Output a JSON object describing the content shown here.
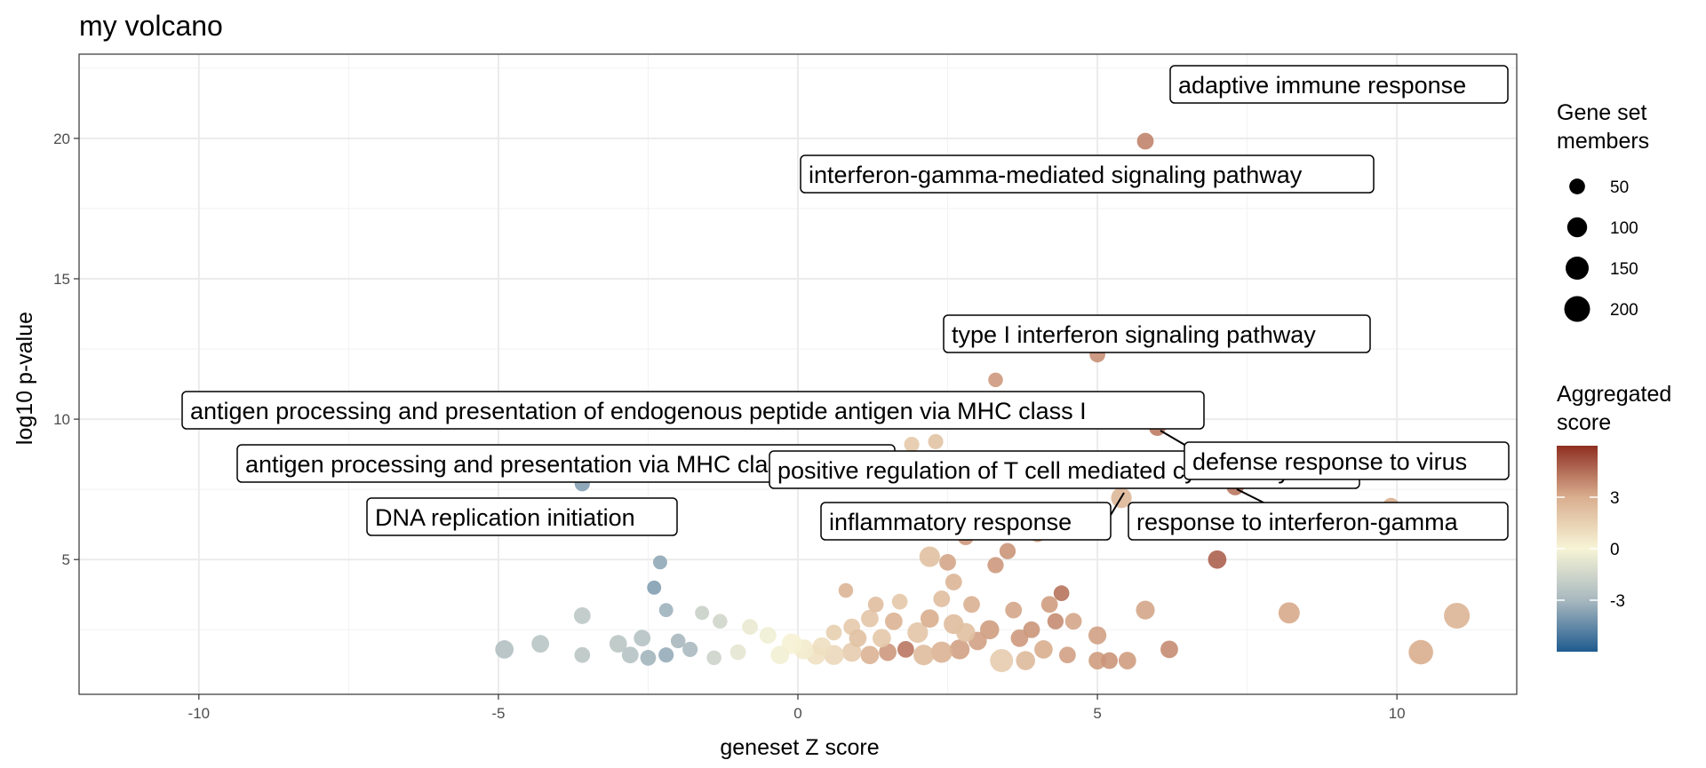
{
  "chart_data": {
    "type": "scatter",
    "title": "my volcano",
    "xlabel": "geneset Z score",
    "ylabel": "log10 p-value",
    "xlim": [
      -12,
      12
    ],
    "ylim": [
      0.2,
      23
    ],
    "xticks": [
      -10,
      -5,
      0,
      5,
      10
    ],
    "yticks": [
      5,
      10,
      15,
      20
    ],
    "grid": true,
    "legend_placement": "right",
    "size_legend": {
      "title_lines": [
        "Gene set",
        "members"
      ],
      "entries": [
        {
          "label": "50",
          "value": 50
        },
        {
          "label": "100",
          "value": 100
        },
        {
          "label": "150",
          "value": 150
        },
        {
          "label": "200",
          "value": 200
        }
      ]
    },
    "color_legend": {
      "title_lines": [
        "Aggregated",
        "score"
      ],
      "range": [
        -6,
        6
      ],
      "ticks": [
        3,
        0,
        -3
      ],
      "tick_labels": [
        "3",
        "0",
        "-3"
      ],
      "colors": [
        "#1f5b8f",
        "#a8b8bf",
        "#f7f4d6",
        "#d9ae8f",
        "#8f2f22"
      ]
    },
    "points": [
      {
        "x": 5.8,
        "y": 19.9,
        "score": 4.0,
        "size": 60
      },
      {
        "x": 5.0,
        "y": 12.3,
        "score": 3.7,
        "size": 50
      },
      {
        "x": 3.3,
        "y": 11.4,
        "score": 3.5,
        "size": 40
      },
      {
        "x": 6.0,
        "y": 9.7,
        "score": 4.2,
        "size": 60
      },
      {
        "x": 7.3,
        "y": 7.6,
        "score": 4.3,
        "size": 70
      },
      {
        "x": 5.4,
        "y": 7.2,
        "score": 2.6,
        "size": 110
      },
      {
        "x": 7.0,
        "y": 5.0,
        "score": 4.8,
        "size": 80
      },
      {
        "x": 9.9,
        "y": 6.9,
        "score": 3.0,
        "size": 60
      },
      {
        "x": 2.3,
        "y": 9.2,
        "score": 2.1,
        "size": 45
      },
      {
        "x": 1.9,
        "y": 9.1,
        "score": 1.8,
        "size": 45
      },
      {
        "x": 2.3,
        "y": 6.0,
        "score": 3.8,
        "size": 50
      },
      {
        "x": 2.8,
        "y": 5.8,
        "score": 3.5,
        "size": 55
      },
      {
        "x": 3.1,
        "y": 6.4,
        "score": 3.4,
        "size": 55
      },
      {
        "x": 3.6,
        "y": 6.6,
        "score": 3.0,
        "size": 55
      },
      {
        "x": 4.0,
        "y": 5.9,
        "score": 3.3,
        "size": 50
      },
      {
        "x": 3.5,
        "y": 5.3,
        "score": 3.6,
        "size": 55
      },
      {
        "x": 2.2,
        "y": 5.1,
        "score": 2.2,
        "size": 110
      },
      {
        "x": 2.5,
        "y": 4.9,
        "score": 3.2,
        "size": 60
      },
      {
        "x": 2.6,
        "y": 4.2,
        "score": 2.7,
        "size": 60
      },
      {
        "x": 3.3,
        "y": 4.8,
        "score": 3.5,
        "size": 55
      },
      {
        "x": 4.4,
        "y": 3.8,
        "score": 4.4,
        "size": 50
      },
      {
        "x": 4.2,
        "y": 3.4,
        "score": 3.4,
        "size": 60
      },
      {
        "x": 4.3,
        "y": 2.8,
        "score": 3.8,
        "size": 55
      },
      {
        "x": 4.6,
        "y": 2.8,
        "score": 3.2,
        "size": 60
      },
      {
        "x": 5.0,
        "y": 2.3,
        "score": 3.3,
        "size": 75
      },
      {
        "x": 5.8,
        "y": 3.2,
        "score": 3.2,
        "size": 85
      },
      {
        "x": 6.2,
        "y": 1.8,
        "score": 3.8,
        "size": 70
      },
      {
        "x": 8.2,
        "y": 3.1,
        "score": 3.1,
        "size": 120
      },
      {
        "x": 11.0,
        "y": 3.0,
        "score": 2.7,
        "size": 200
      },
      {
        "x": 10.4,
        "y": 1.7,
        "score": 3.0,
        "size": 175
      },
      {
        "x": 5.0,
        "y": 1.4,
        "score": 3.4,
        "size": 70
      },
      {
        "x": 5.5,
        "y": 1.4,
        "score": 3.4,
        "size": 70
      },
      {
        "x": 5.2,
        "y": 1.4,
        "score": 3.6,
        "size": 60
      },
      {
        "x": 3.4,
        "y": 1.4,
        "score": 1.7,
        "size": 150
      },
      {
        "x": 3.2,
        "y": 2.5,
        "score": 3.4,
        "size": 90
      },
      {
        "x": 2.6,
        "y": 2.7,
        "score": 2.4,
        "size": 100
      },
      {
        "x": 2.0,
        "y": 2.4,
        "score": 2.0,
        "size": 110
      },
      {
        "x": 2.2,
        "y": 2.9,
        "score": 3.0,
        "size": 80
      },
      {
        "x": 1.6,
        "y": 2.8,
        "score": 2.8,
        "size": 70
      },
      {
        "x": 1.2,
        "y": 2.9,
        "score": 2.0,
        "size": 70
      },
      {
        "x": 0.9,
        "y": 2.6,
        "score": 1.8,
        "size": 60
      },
      {
        "x": 0.6,
        "y": 2.4,
        "score": 1.6,
        "size": 50
      },
      {
        "x": 0.8,
        "y": 3.9,
        "score": 2.7,
        "size": 40
      },
      {
        "x": 1.3,
        "y": 3.4,
        "score": 2.3,
        "size": 50
      },
      {
        "x": 1.7,
        "y": 3.5,
        "score": 1.9,
        "size": 50
      },
      {
        "x": 2.4,
        "y": 3.6,
        "score": 2.3,
        "size": 60
      },
      {
        "x": 2.9,
        "y": 3.4,
        "score": 2.9,
        "size": 60
      },
      {
        "x": 3.6,
        "y": 3.2,
        "score": 3.2,
        "size": 60
      },
      {
        "x": 3.9,
        "y": 2.5,
        "score": 3.6,
        "size": 60
      },
      {
        "x": 3.0,
        "y": 2.1,
        "score": 3.3,
        "size": 80
      },
      {
        "x": 2.7,
        "y": 1.8,
        "score": 3.3,
        "size": 100
      },
      {
        "x": 2.4,
        "y": 1.7,
        "score": 2.8,
        "size": 120
      },
      {
        "x": 2.1,
        "y": 1.6,
        "score": 2.4,
        "size": 110
      },
      {
        "x": 1.8,
        "y": 1.8,
        "score": 4.3,
        "size": 60
      },
      {
        "x": 1.5,
        "y": 1.7,
        "score": 3.5,
        "size": 70
      },
      {
        "x": 1.2,
        "y": 1.6,
        "score": 2.8,
        "size": 80
      },
      {
        "x": 0.9,
        "y": 1.7,
        "score": 1.7,
        "size": 90
      },
      {
        "x": 0.6,
        "y": 1.6,
        "score": 1.2,
        "size": 100
      },
      {
        "x": 0.3,
        "y": 1.6,
        "score": 0.8,
        "size": 90
      },
      {
        "x": 0.1,
        "y": 1.8,
        "score": 0.4,
        "size": 100
      },
      {
        "x": -0.1,
        "y": 2.0,
        "score": 0.1,
        "size": 110
      },
      {
        "x": -0.3,
        "y": 1.6,
        "score": -0.2,
        "size": 80
      },
      {
        "x": -0.5,
        "y": 2.3,
        "score": -0.3,
        "size": 60
      },
      {
        "x": -0.8,
        "y": 2.6,
        "score": -0.5,
        "size": 50
      },
      {
        "x": -1.0,
        "y": 1.7,
        "score": -0.7,
        "size": 50
      },
      {
        "x": -1.4,
        "y": 1.5,
        "score": -1.6,
        "size": 40
      },
      {
        "x": -1.6,
        "y": 3.1,
        "score": -1.8,
        "size": 35
      },
      {
        "x": -1.3,
        "y": 2.8,
        "score": -1.5,
        "size": 40
      },
      {
        "x": -2.3,
        "y": 4.9,
        "score": -3.5,
        "size": 35
      },
      {
        "x": -2.4,
        "y": 4.0,
        "score": -3.8,
        "size": 35
      },
      {
        "x": -2.2,
        "y": 3.2,
        "score": -3.2,
        "size": 35
      },
      {
        "x": -2.0,
        "y": 2.1,
        "score": -3.0,
        "size": 40
      },
      {
        "x": -1.8,
        "y": 1.8,
        "score": -2.9,
        "size": 45
      },
      {
        "x": -2.2,
        "y": 1.6,
        "score": -3.4,
        "size": 45
      },
      {
        "x": -2.5,
        "y": 1.5,
        "score": -3.1,
        "size": 50
      },
      {
        "x": -2.8,
        "y": 1.6,
        "score": -2.5,
        "size": 60
      },
      {
        "x": -3.0,
        "y": 2.0,
        "score": -2.3,
        "size": 70
      },
      {
        "x": -2.6,
        "y": 2.2,
        "score": -2.5,
        "size": 60
      },
      {
        "x": -3.6,
        "y": 3.0,
        "score": -2.2,
        "size": 60
      },
      {
        "x": -3.6,
        "y": 1.6,
        "score": -2.3,
        "size": 50
      },
      {
        "x": -4.3,
        "y": 2.0,
        "score": -2.4,
        "size": 70
      },
      {
        "x": -4.9,
        "y": 1.8,
        "score": -2.6,
        "size": 80
      },
      {
        "x": -3.6,
        "y": 7.7,
        "score": -3.8,
        "size": 45
      },
      {
        "x": 0.4,
        "y": 1.9,
        "score": 0.9,
        "size": 80
      },
      {
        "x": 1.0,
        "y": 2.2,
        "score": 2.2,
        "size": 70
      },
      {
        "x": 1.4,
        "y": 2.2,
        "score": 1.9,
        "size": 80
      },
      {
        "x": 2.8,
        "y": 2.4,
        "score": 2.2,
        "size": 90
      },
      {
        "x": 3.7,
        "y": 2.2,
        "score": 3.5,
        "size": 70
      },
      {
        "x": 4.1,
        "y": 1.8,
        "score": 3.0,
        "size": 80
      },
      {
        "x": 4.5,
        "y": 1.6,
        "score": 3.3,
        "size": 60
      },
      {
        "x": 3.8,
        "y": 1.4,
        "score": 2.5,
        "size": 90
      }
    ],
    "labels": [
      {
        "text": "adaptive immune response",
        "box": "right-aligned",
        "arrow": false
      },
      {
        "text": "interferon-gamma-mediated signaling pathway",
        "arrow": false
      },
      {
        "text": "type I interferon signaling pathway",
        "arrow": false
      },
      {
        "text": "antigen processing and presentation of endogenous peptide antigen via MHC class I",
        "arrow": false
      },
      {
        "text": "antigen processing and presentation via MHC class Ib",
        "arrow": false
      },
      {
        "text": "DNA replication initiation",
        "arrow": false
      },
      {
        "text": "positive regulation of T cell mediated cytotoxicity",
        "arrow": false
      },
      {
        "text": "defense response to virus",
        "arrow": true
      },
      {
        "text": "inflammatory response",
        "arrow": true
      },
      {
        "text": "response to interferon-gamma",
        "arrow": true
      }
    ]
  }
}
